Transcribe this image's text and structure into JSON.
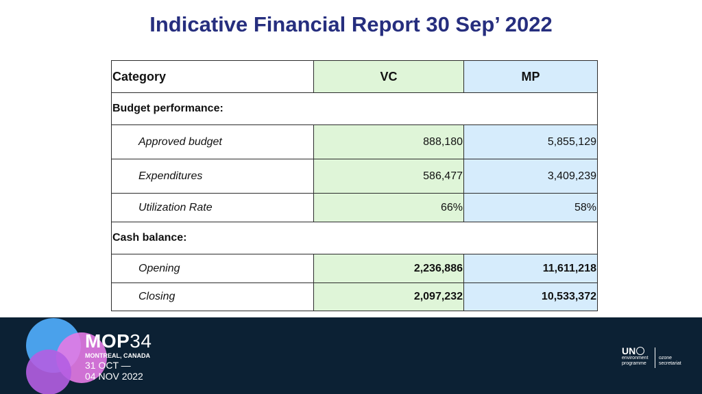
{
  "title": "Indicative Financial Report 30 Sep’ 2022",
  "table": {
    "headers": {
      "category": "Category",
      "vc": "VC",
      "mp": "MP"
    },
    "sections": [
      {
        "label": "Budget performance:",
        "rows": [
          {
            "label": "Approved budget",
            "vc": "888,180",
            "mp": "5,855,129"
          },
          {
            "label": "Expenditures",
            "vc": "586,477",
            "mp": "3,409,239"
          },
          {
            "label": "Utilization Rate",
            "vc": "66%",
            "mp": "58%"
          }
        ]
      },
      {
        "label": "Cash balance:",
        "rows": [
          {
            "label": "Opening",
            "vc": "2,236,886",
            "mp": "11,611,218"
          },
          {
            "label": "Closing",
            "vc": "2,097,232",
            "mp": "10,533,372"
          }
        ]
      }
    ]
  },
  "footer": {
    "event_prefix": "MOP",
    "event_number": "34",
    "location": "MONTREAL, CANADA",
    "date_start": "31 OCT —",
    "date_end": "04 NOV 2022",
    "un_logo": "UN",
    "un_line1": "environment",
    "un_line2": "programme",
    "ozone_line1": "ozone",
    "ozone_line2": "secretariat"
  },
  "colors": {
    "title": "#262e7e",
    "vc_fill": "#dff5d8",
    "mp_fill": "#d6ecfc",
    "footer_bg": "#0c2134"
  },
  "icons": [
    "globe-icon",
    "mop34-circles-logo"
  ]
}
